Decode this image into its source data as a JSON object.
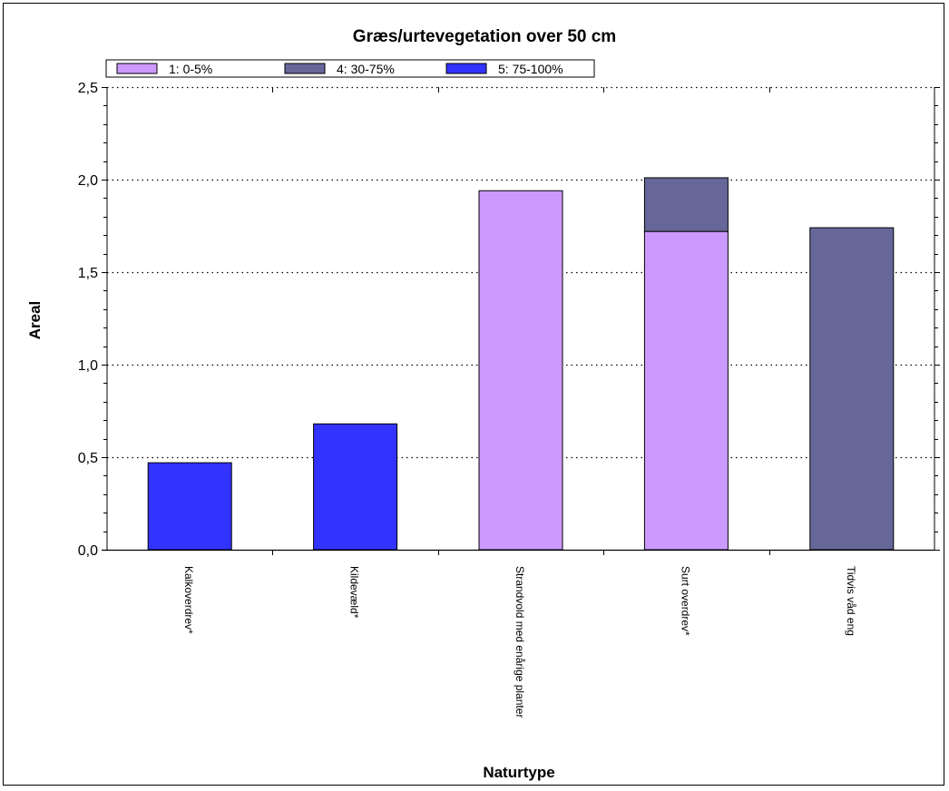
{
  "chart_data": {
    "type": "bar",
    "stacked": true,
    "title": "Græs/urtevegetation over 50 cm",
    "xlabel": "Naturtype",
    "ylabel": "Areal",
    "ylim": [
      0,
      2.5
    ],
    "yticks": [
      "0,0",
      "0,5",
      "1,0",
      "1,5",
      "2,0",
      "2,5"
    ],
    "grid": "horizontal dotted",
    "legend_position": "top-left",
    "categories": [
      "Kalkoverdrev*",
      "Kildevæld*",
      "Strandvold med enårige planter",
      "Surt overdrev*",
      "Tidvis våd eng"
    ],
    "series": [
      {
        "name": "1: 0-5%",
        "color": "#CC99FF",
        "values": [
          0,
          0,
          1.94,
          1.72,
          0
        ]
      },
      {
        "name": "4: 30-75%",
        "color": "#666699",
        "values": [
          0,
          0,
          0,
          0.29,
          1.74
        ]
      },
      {
        "name": "5: 75-100%",
        "color": "#3333FF",
        "values": [
          0.47,
          0.68,
          0,
          0,
          0
        ]
      }
    ]
  }
}
